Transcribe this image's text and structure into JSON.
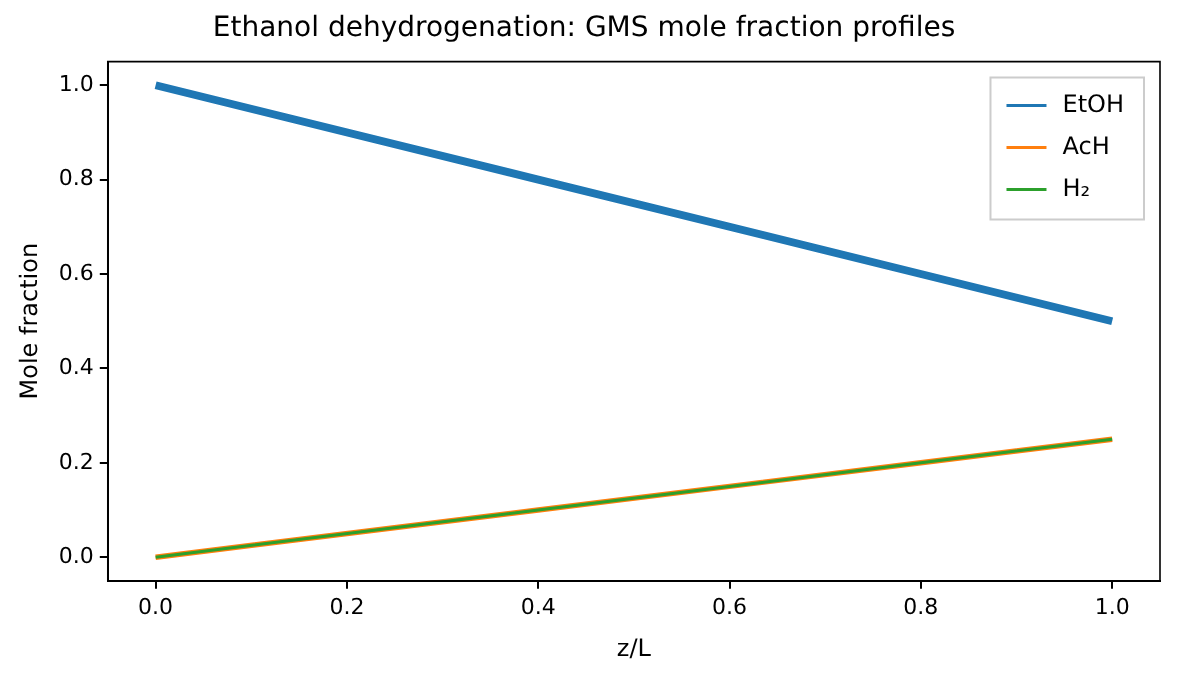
{
  "chart_data": {
    "type": "line",
    "title": "Ethanol dehydrogenation: GMS mole fraction profiles",
    "xlabel": "z/L",
    "ylabel": "Mole fraction",
    "x": [
      0,
      0.4,
      0.8,
      1
    ],
    "series": [
      {
        "name": "EtOH",
        "color": "#1f77b4",
        "values": [
          1.0,
          0.8,
          0.6,
          0.5
        ]
      },
      {
        "name": "AcH",
        "color": "#ff7f0e",
        "values": [
          0,
          0.1,
          0.2,
          0.25
        ]
      },
      {
        "name": "H₂",
        "color": "#2ca02c",
        "values": [
          0,
          0.1,
          0.2,
          0.25
        ]
      }
    ],
    "xlim": [
      -0.05,
      1.05
    ],
    "xticks": [
      {
        "value": 0,
        "label": "0.0"
      },
      {
        "value": 0.2,
        "label": "0.2"
      },
      {
        "value": 0.4,
        "label": "0.4"
      },
      {
        "value": 0.6,
        "label": "0.6"
      },
      {
        "value": 0.8,
        "label": "0.8"
      },
      {
        "value": 1,
        "label": "1.0"
      }
    ],
    "ylim": [
      -0.05,
      1.05
    ],
    "yticks": [
      {
        "value": 0,
        "label": "0.0"
      },
      {
        "value": 0.2,
        "label": "0.2"
      },
      {
        "value": 0.4,
        "label": "0.4"
      },
      {
        "value": 0.6,
        "label": "0.6"
      },
      {
        "value": 0.8,
        "label": "0.8"
      },
      {
        "value": 1,
        "label": "1.0"
      }
    ],
    "grid": false,
    "legend": "top right",
    "marker": "none",
    "line_style": "solid"
  }
}
